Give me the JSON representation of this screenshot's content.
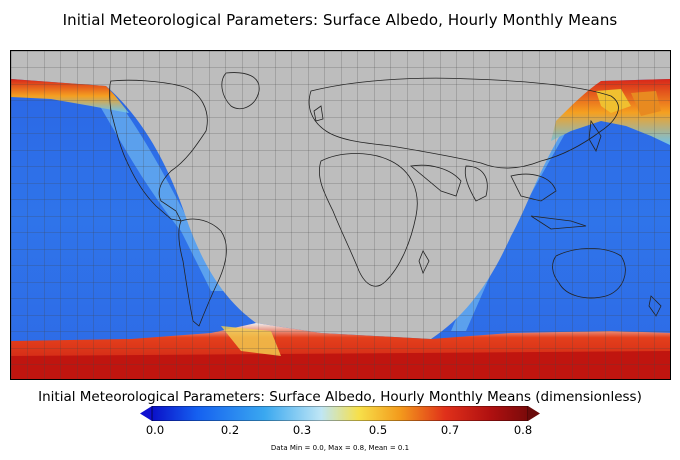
{
  "title": "Initial Meteorological Parameters: Surface Albedo, Hourly Monthly Means",
  "colorbar": {
    "title": "Initial Meteorological Parameters: Surface Albedo, Hourly Monthly Means (dimensionless)",
    "ticks": [
      "0.0",
      "0.2",
      "0.3",
      "0.5",
      "0.7",
      "0.8"
    ],
    "min": 0.0,
    "max": 0.8,
    "colors": [
      "#0a10c8",
      "#1560f0",
      "#3aa8f0",
      "#bfe6f5",
      "#f7e04a",
      "#f39a1c",
      "#e0301a",
      "#b01010",
      "#7a0a0a"
    ]
  },
  "stats": "Data Min = 0.0, Max = 0.8, Mean = 0.1",
  "map": {
    "night_fill": "#bdbdbd",
    "ocean_color": "#2f6fe6"
  }
}
